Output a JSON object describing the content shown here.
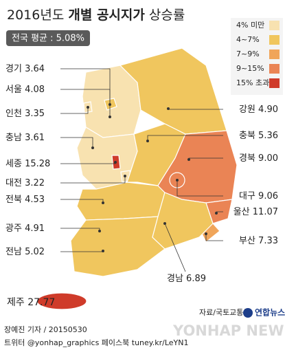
{
  "header": {
    "title_year": "2016년도",
    "title_bold": "개별 공시지가",
    "title_rest": "상승률",
    "average": "전국 평균 : 5.08%"
  },
  "legend": [
    {
      "label": "4% 미만",
      "color": "#f8e2b0"
    },
    {
      "label": "4~7%",
      "color": "#f0c65e"
    },
    {
      "label": "7~9%",
      "color": "#f0a55a"
    },
    {
      "label": "9~15%",
      "color": "#ea8455"
    },
    {
      "label": "15% 초과",
      "color": "#cf3b2a"
    }
  ],
  "regions": [
    {
      "name": "경기",
      "value": "3.64",
      "color": "#f8e2b0"
    },
    {
      "name": "서울",
      "value": "4.08",
      "color": "#f0c65e"
    },
    {
      "name": "인천",
      "value": "3.35",
      "color": "#f8e2b0"
    },
    {
      "name": "충남",
      "value": "3.61",
      "color": "#f8e2b0"
    },
    {
      "name": "세종",
      "value": "15.28",
      "color": "#cf3b2a"
    },
    {
      "name": "대전",
      "value": "3.22",
      "color": "#f8e2b0"
    },
    {
      "name": "전북",
      "value": "4.53",
      "color": "#f0c65e"
    },
    {
      "name": "광주",
      "value": "4.91",
      "color": "#f0c65e"
    },
    {
      "name": "전남",
      "value": "5.02",
      "color": "#f0c65e"
    },
    {
      "name": "강원",
      "value": "4.90",
      "color": "#f0c65e"
    },
    {
      "name": "충북",
      "value": "5.36",
      "color": "#f0c65e"
    },
    {
      "name": "경북",
      "value": "9.00",
      "color": "#ea8455"
    },
    {
      "name": "대구",
      "value": "9.06",
      "color": "#ea8455"
    },
    {
      "name": "울산",
      "value": "11.07",
      "color": "#ea8455"
    },
    {
      "name": "부산",
      "value": "7.33",
      "color": "#f0a55a"
    },
    {
      "name": "경남",
      "value": "6.89",
      "color": "#f0c65e"
    },
    {
      "name": "제주",
      "value": "27.77",
      "color": "#cf3b2a"
    }
  ],
  "footer": {
    "source": "자료/국토교통부",
    "logo": "연합뉴스",
    "watermark": "YONHAP NEWS",
    "credit": "장예진 기자 / 20150530",
    "social": "트위터 @yonhap_graphics 페이스북 tuney.kr/LeYN1"
  }
}
